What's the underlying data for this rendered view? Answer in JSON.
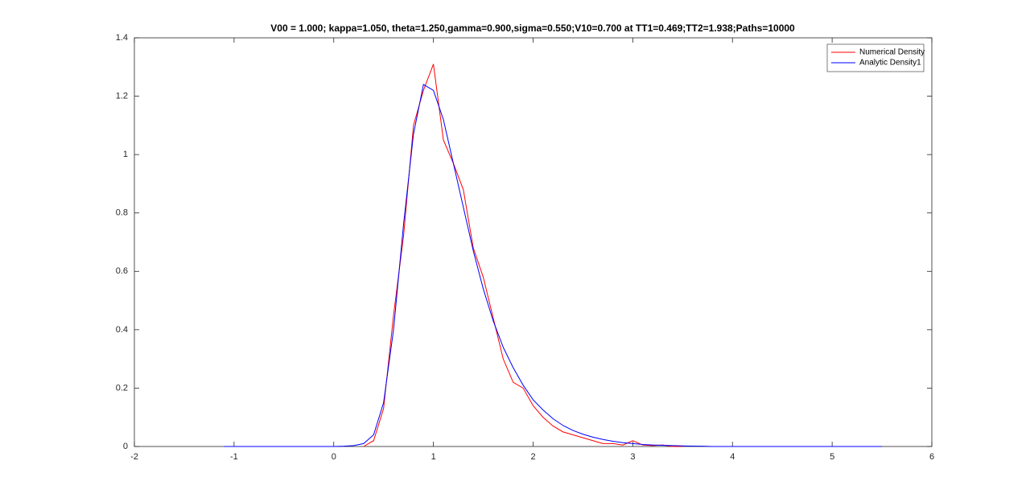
{
  "chart_data": {
    "type": "line",
    "title": "V00 = 1.000; kappa=1.050, theta=1.250,gamma=0.900,sigma=0.550;V10=0.700 at TT1=0.469;TT2=1.938;Paths=10000",
    "x": [
      -1.1,
      -1,
      -0.9,
      -0.8,
      -0.7,
      -0.6,
      -0.5,
      -0.4,
      -0.3,
      -0.2,
      -0.1,
      0,
      0.1,
      0.2,
      0.3,
      0.4,
      0.5,
      0.6,
      0.7,
      0.8,
      0.9,
      1,
      1.1,
      1.2,
      1.3,
      1.4,
      1.5,
      1.6,
      1.7,
      1.8,
      1.9,
      2,
      2.1,
      2.2,
      2.3,
      2.4,
      2.5,
      2.6,
      2.7,
      2.8,
      2.9,
      3,
      3.1,
      3.2,
      3.3,
      3.4,
      3.5,
      3.6,
      3.7,
      3.8,
      3.9,
      4,
      4.1,
      4.2,
      4.3,
      4.4,
      4.5,
      4.6,
      4.7,
      4.8,
      4.9,
      5,
      5.1,
      5.2,
      5.3,
      5.4,
      5.5
    ],
    "series": [
      {
        "name": "Numerical Density",
        "color": "#ff0000",
        "values": [
          null,
          null,
          null,
          null,
          null,
          null,
          null,
          null,
          null,
          null,
          null,
          null,
          null,
          null,
          0,
          0.02,
          0.13,
          0.45,
          0.72,
          1.1,
          1.22,
          1.31,
          1.05,
          0.97,
          0.88,
          0.68,
          0.58,
          0.44,
          0.3,
          0.22,
          0.2,
          0.14,
          0.1,
          0.07,
          0.05,
          0.04,
          0.03,
          0.02,
          0.01,
          0.01,
          0.005,
          0.02,
          0.005,
          0.003,
          0.005,
          0,
          0,
          null,
          null,
          null,
          null,
          null,
          null,
          null,
          null,
          null,
          null,
          null,
          null,
          null,
          null,
          null,
          null,
          null,
          null,
          null,
          null
        ]
      },
      {
        "name": "Analytic Density1",
        "color": "#0000ff",
        "values": [
          0,
          0,
          0,
          0,
          0,
          0,
          0,
          0,
          0,
          0,
          0,
          0,
          0.001,
          0.003,
          0.01,
          0.04,
          0.15,
          0.4,
          0.76,
          1.07,
          1.24,
          1.22,
          1.12,
          0.97,
          0.82,
          0.67,
          0.54,
          0.43,
          0.34,
          0.27,
          0.21,
          0.16,
          0.125,
          0.095,
          0.072,
          0.055,
          0.042,
          0.032,
          0.024,
          0.018,
          0.013,
          0.01,
          0.007,
          0.005,
          0.004,
          0.003,
          0.002,
          0.0015,
          0.001,
          0,
          0,
          0,
          0,
          0,
          0,
          0,
          0,
          0,
          0,
          0,
          0,
          0,
          0,
          0,
          0,
          0,
          0
        ]
      }
    ],
    "xlim": [
      -2,
      6
    ],
    "xticks": [
      -2,
      -1,
      0,
      1,
      2,
      3,
      4,
      5,
      6
    ],
    "ylim": [
      0,
      1.4
    ],
    "yticks": [
      0,
      0.2,
      0.4,
      0.6,
      0.8,
      1,
      1.2,
      1.4
    ],
    "grid": false,
    "legend": "top-right"
  }
}
